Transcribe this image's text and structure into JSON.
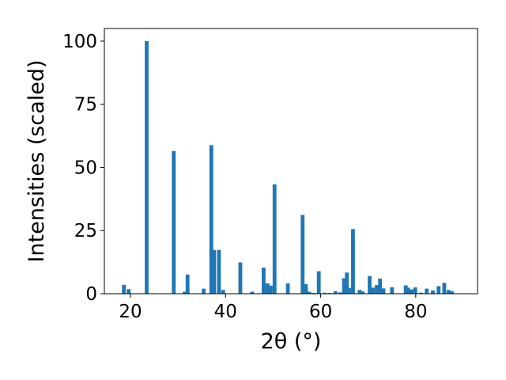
{
  "chart_data": {
    "type": "bar",
    "xlabel": "2θ (°)",
    "ylabel": "Intensities (scaled)",
    "xlim": [
      14.5,
      93.0
    ],
    "ylim": [
      0,
      105
    ],
    "xticks": [
      20,
      40,
      60,
      80
    ],
    "yticks": [
      0,
      25,
      50,
      75,
      100
    ],
    "color": "#1f77b4",
    "grid": false,
    "legend": "none",
    "bar_width": 0.8,
    "series": [
      {
        "x": [
          18.6,
          19.6,
          23.4,
          29.1,
          31.4,
          32.0,
          35.4,
          37.0,
          37.6,
          38.6,
          39.5,
          43.1,
          45.6,
          48.0,
          48.8,
          49.5,
          50.3,
          53.1,
          56.2,
          56.9,
          57.6,
          58.5,
          59.6,
          60.9,
          61.9,
          63.1,
          64.1,
          64.9,
          65.5,
          66.0,
          66.8,
          68.2,
          68.8,
          70.3,
          71.0,
          71.8,
          72.5,
          73.2,
          75.0,
          77.9,
          78.4,
          79.1,
          79.9,
          81.1,
          82.3,
          83.6,
          84.8,
          86.0,
          86.9,
          87.6
        ],
        "values": [
          3.5,
          1.8,
          100.0,
          56.5,
          0.8,
          7.6,
          2.0,
          58.8,
          17.3,
          17.3,
          1.5,
          12.4,
          0.8,
          10.3,
          4.1,
          3.2,
          43.3,
          4.1,
          31.2,
          3.8,
          0.8,
          0.3,
          8.9,
          0.4,
          0.3,
          1.0,
          0.5,
          6.1,
          8.4,
          2.3,
          25.6,
          1.5,
          0.9,
          7.0,
          2.4,
          3.4,
          6.0,
          2.1,
          2.6,
          3.3,
          2.4,
          1.7,
          2.5,
          0.4,
          2.0,
          1.3,
          3.0,
          4.3,
          1.5,
          1.0
        ]
      }
    ]
  }
}
